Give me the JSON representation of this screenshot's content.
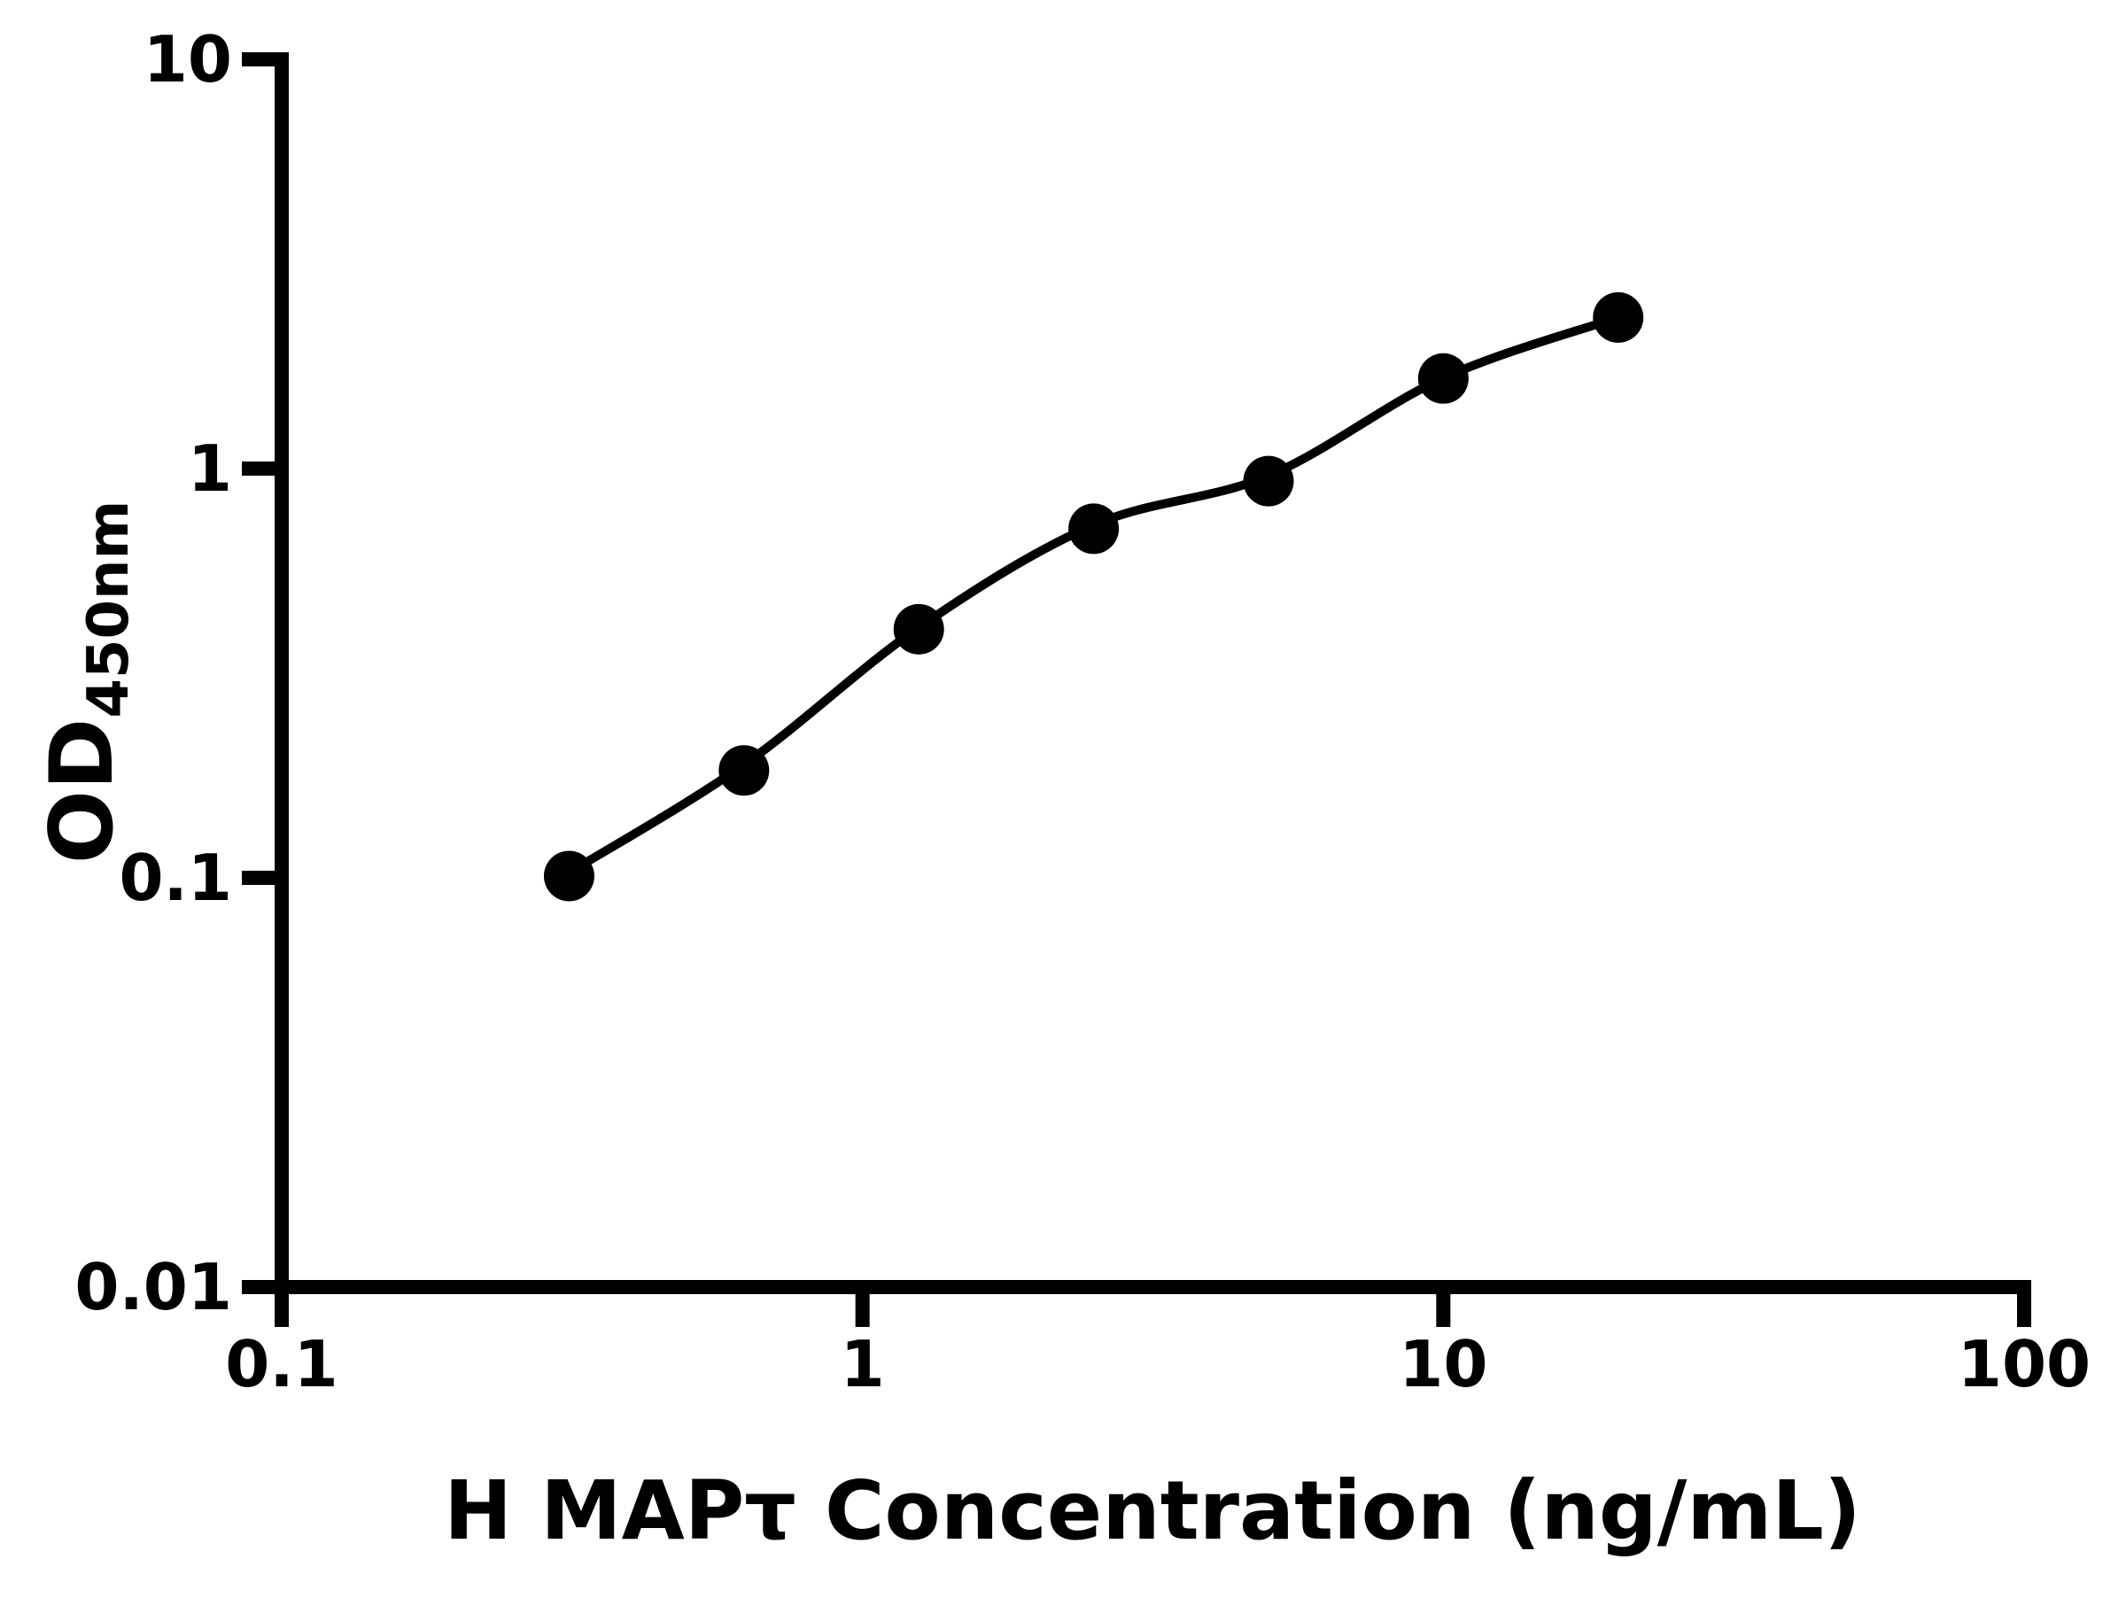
{
  "figure": {
    "background": "#ffffff",
    "ink_color": "#000000"
  },
  "chart_data": {
    "type": "scatter",
    "title": "",
    "xlabel": "H MAPτ Concentration (ng/mL)",
    "ylabel_main": "OD",
    "ylabel_sub": "450nm",
    "x_scale": "log",
    "y_scale": "log",
    "xlim": [
      0.1,
      100
    ],
    "ylim": [
      0.01,
      10
    ],
    "grid": false,
    "legend": "none",
    "x_ticks": [
      {
        "v": 0.1,
        "label": "0.1"
      },
      {
        "v": 1,
        "label": "1"
      },
      {
        "v": 10,
        "label": "10"
      },
      {
        "v": 100,
        "label": "100"
      }
    ],
    "y_ticks": [
      {
        "v": 0.01,
        "label": "0.01"
      },
      {
        "v": 0.1,
        "label": "0.1"
      },
      {
        "v": 1,
        "label": "1"
      },
      {
        "v": 10,
        "label": "10"
      }
    ],
    "series": [
      {
        "name": "standard-curve-points",
        "marker": "circle",
        "color": "#000000",
        "x": [
          0.3125,
          0.625,
          1.25,
          2.5,
          5,
          10,
          20
        ],
        "y": [
          0.101,
          0.183,
          0.405,
          0.713,
          0.932,
          1.66,
          2.34
        ]
      }
    ],
    "fit_curve": {
      "name": "4pl-fit-line",
      "color": "#000000",
      "x": [
        0.3125,
        0.625,
        1.25,
        2.5,
        5,
        10,
        20
      ],
      "y": [
        0.103,
        0.189,
        0.409,
        0.728,
        0.96,
        1.665,
        2.34
      ]
    }
  }
}
